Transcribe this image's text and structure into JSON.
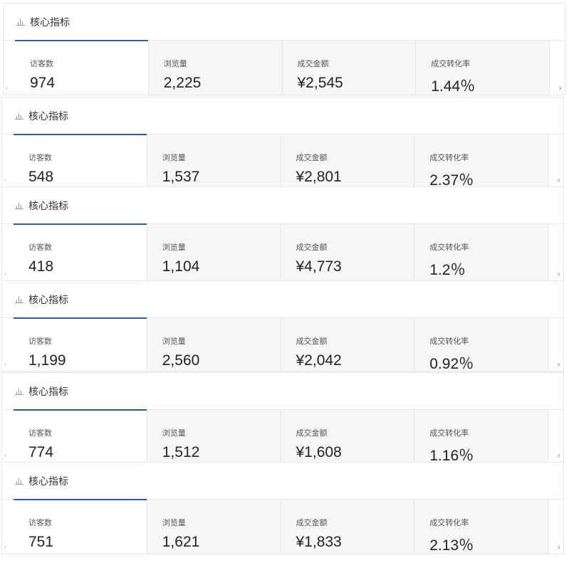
{
  "title": "核心指标",
  "labels": [
    "访客数",
    "浏览量",
    "成交金额",
    "成交转化率"
  ],
  "panels": [
    {
      "values": [
        "974",
        "2,225",
        "¥2,545",
        "1.44％"
      ]
    },
    {
      "values": [
        "548",
        "1,537",
        "¥2,801",
        "2.37％"
      ]
    },
    {
      "values": [
        "418",
        "1,104",
        "¥4,773",
        "1.2％"
      ]
    },
    {
      "values": [
        "1,199",
        "2,560",
        "¥2,042",
        "0.92％"
      ]
    },
    {
      "values": [
        "774",
        "1,512",
        "¥1,608",
        "1.16％"
      ]
    },
    {
      "values": [
        "751",
        "1,621",
        "¥1,833",
        "2.13％"
      ]
    }
  ],
  "icons": {
    "header": "bar-chart-icon",
    "prev": "chevron-left-icon",
    "next": "chevron-right-icon"
  },
  "arrows": {
    "prev": "‹",
    "next": "›"
  },
  "colors": {
    "accent": "#2e5d9f",
    "card_bg": "#f5f6f8"
  }
}
